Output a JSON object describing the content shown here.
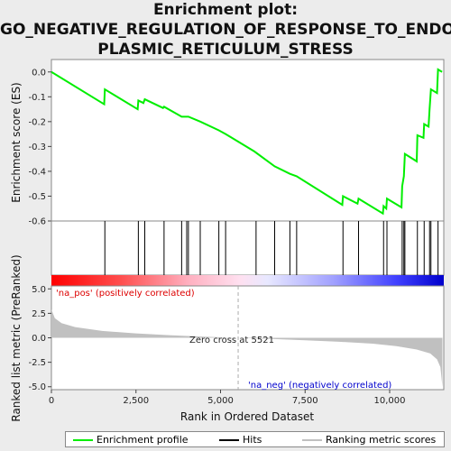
{
  "title_lines": [
    "Enrichment plot:",
    "GO_NEGATIVE_REGULATION_OF_RESPONSE_TO_ENDO",
    "PLASMIC_RETICULUM_STRESS"
  ],
  "colors": {
    "enrichment": "#00ee00",
    "hits": "#000000",
    "ranking": "#c0c0c0",
    "pos": "#ff0000",
    "neg": "#0000ff"
  },
  "chart_data": [
    {
      "type": "line",
      "name": "enrichment",
      "ylabel": "Enrichment score (ES)",
      "xlim": [
        0,
        11600
      ],
      "ylim": [
        -0.6,
        0.05
      ],
      "yticks": [
        "0.0",
        "-0.1",
        "-0.2",
        "-0.3",
        "-0.4",
        "-0.5",
        "-0.6"
      ],
      "points": [
        [
          0,
          0.0
        ],
        [
          1560,
          -0.13
        ],
        [
          1580,
          -0.07
        ],
        [
          2550,
          -0.15
        ],
        [
          2570,
          -0.115
        ],
        [
          2720,
          -0.125
        ],
        [
          2760,
          -0.11
        ],
        [
          3300,
          -0.145
        ],
        [
          3330,
          -0.14
        ],
        [
          3850,
          -0.18
        ],
        [
          4000,
          -0.18
        ],
        [
          4050,
          -0.18
        ],
        [
          4400,
          -0.2
        ],
        [
          4950,
          -0.235
        ],
        [
          5150,
          -0.25
        ],
        [
          6000,
          -0.32
        ],
        [
          6600,
          -0.38
        ],
        [
          7050,
          -0.41
        ],
        [
          7250,
          -0.42
        ],
        [
          8600,
          -0.535
        ],
        [
          8620,
          -0.5
        ],
        [
          9050,
          -0.53
        ],
        [
          9080,
          -0.51
        ],
        [
          9800,
          -0.57
        ],
        [
          9820,
          -0.54
        ],
        [
          9900,
          -0.55
        ],
        [
          9920,
          -0.51
        ],
        [
          10350,
          -0.545
        ],
        [
          10370,
          -0.46
        ],
        [
          10420,
          -0.42
        ],
        [
          10450,
          -0.33
        ],
        [
          10800,
          -0.36
        ],
        [
          10820,
          -0.255
        ],
        [
          11000,
          -0.265
        ],
        [
          11020,
          -0.21
        ],
        [
          11150,
          -0.22
        ],
        [
          11180,
          -0.15
        ],
        [
          11220,
          -0.07
        ],
        [
          11400,
          -0.085
        ],
        [
          11430,
          0.01
        ],
        [
          11550,
          0.0
        ]
      ]
    },
    {
      "type": "hits",
      "name": "hits",
      "x": [
        1580,
        2570,
        2760,
        3330,
        3850,
        4000,
        4050,
        4400,
        4950,
        5150,
        6050,
        6600,
        7050,
        7250,
        8620,
        9080,
        9820,
        9920,
        10370,
        10420,
        10450,
        10820,
        11020,
        11180,
        11220,
        11430
      ]
    },
    {
      "type": "area",
      "name": "ranking",
      "ylabel": "Ranked list metric (PreRanked)",
      "xlabel": "Rank in Ordered Dataset",
      "xlim": [
        0,
        11600
      ],
      "ylim": [
        -5.3,
        5.3
      ],
      "xticks": [
        "0",
        "2,500",
        "5,000",
        "7,500",
        "10,000"
      ],
      "yticks": [
        "5.0",
        "2.5",
        "0.0",
        "-2.5",
        "-5.0"
      ],
      "points": [
        [
          0,
          2.9
        ],
        [
          100,
          2.0
        ],
        [
          300,
          1.5
        ],
        [
          700,
          1.1
        ],
        [
          1500,
          0.7
        ],
        [
          2500,
          0.45
        ],
        [
          3500,
          0.27
        ],
        [
          4500,
          0.12
        ],
        [
          5521,
          0.0
        ],
        [
          6500,
          -0.12
        ],
        [
          7500,
          -0.25
        ],
        [
          8500,
          -0.4
        ],
        [
          9500,
          -0.6
        ],
        [
          10200,
          -0.85
        ],
        [
          10800,
          -1.2
        ],
        [
          11200,
          -1.6
        ],
        [
          11400,
          -2.2
        ],
        [
          11500,
          -3.0
        ],
        [
          11560,
          -5.0
        ]
      ],
      "annotations": {
        "zero_cross": "Zero cross at 5521",
        "pos": "'na_pos' (positively correlated)",
        "neg": "'na_neg' (negatively correlated)"
      }
    }
  ],
  "legend": [
    "Enrichment profile",
    "Hits",
    "Ranking metric scores"
  ]
}
